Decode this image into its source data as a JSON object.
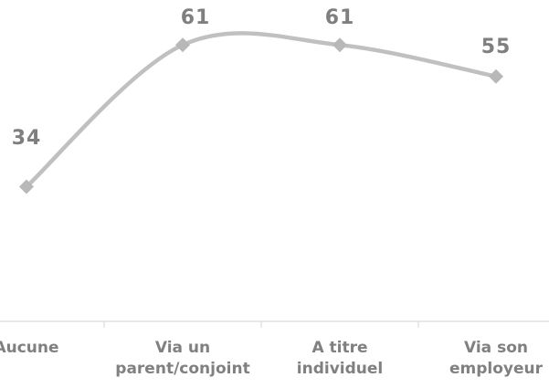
{
  "chart_data": {
    "type": "line",
    "categories": [
      [
        "Aucune"
      ],
      [
        "Via un",
        "parent/conjoint"
      ],
      [
        "A titre",
        "individuel"
      ],
      [
        "Via son",
        "employeur"
      ]
    ],
    "series": [
      {
        "values": [
          34,
          61,
          61,
          55
        ]
      }
    ],
    "data_labels": [
      "34",
      "61",
      "61",
      "55"
    ],
    "title": "",
    "xlabel": "",
    "ylabel": "",
    "ylim": [
      0,
      70
    ],
    "grid": false,
    "legend": "none",
    "colors": {
      "line": "#c0c0c0",
      "marker": "#b8b8b8",
      "labels": "#7f7f7f",
      "axis": "#d4d4d4"
    }
  }
}
